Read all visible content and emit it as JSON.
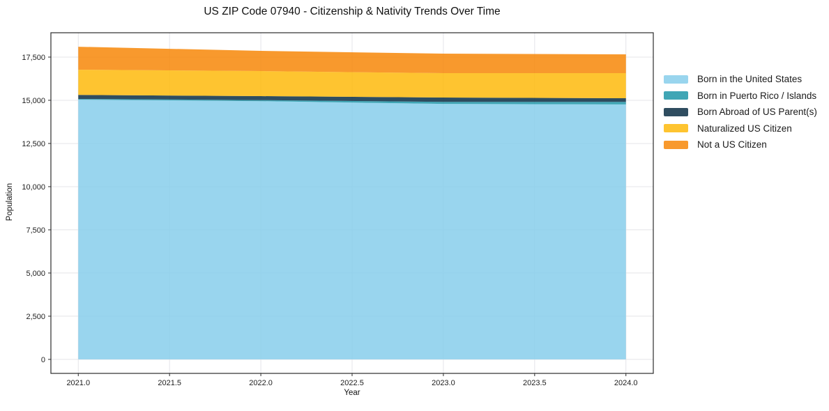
{
  "figure": {
    "title": "US ZIP Code 07940 - Citizenship & Nativity Trends Over Time"
  },
  "chart_data": {
    "type": "area",
    "stacked": true,
    "title": "US ZIP Code 07940 - Citizenship & Nativity Trends Over Time",
    "xlabel": "Year",
    "ylabel": "Population",
    "grid": true,
    "legend_position": "outside-right",
    "fill_alpha": 0.85,
    "x": [
      2021,
      2022,
      2023,
      2024
    ],
    "series": [
      {
        "name": "Born in the United States",
        "color": "#87CEEB",
        "values": [
          15040,
          14950,
          14790,
          14760
        ]
      },
      {
        "name": "Born in Puerto Rico / Islands",
        "color": "#1f96a8",
        "values": [
          40,
          60,
          120,
          150
        ]
      },
      {
        "name": "Born Abroad of US Parent(s)",
        "color": "#0b2e44",
        "values": [
          230,
          230,
          250,
          210
        ]
      },
      {
        "name": "Naturalized US Citizen",
        "color": "#feba0c",
        "values": [
          1460,
          1450,
          1410,
          1450
        ]
      },
      {
        "name": "Not a US Citizen",
        "color": "#f78708",
        "values": [
          1330,
          1170,
          1130,
          1090
        ]
      }
    ],
    "totals": [
      18100,
      17860,
      17700,
      17660
    ],
    "x_tick_values": [
      2021.0,
      2021.5,
      2022.0,
      2022.5,
      2023.0,
      2023.5,
      2024.0
    ],
    "x_tick_labels": [
      "2021.0",
      "2021.5",
      "2022.0",
      "2022.5",
      "2023.0",
      "2023.5",
      "2024.0"
    ],
    "y_tick_values": [
      0,
      2500,
      5000,
      7500,
      10000,
      12500,
      15000,
      17500
    ],
    "y_tick_labels": [
      "0",
      "2,500",
      "5,000",
      "7,500",
      "10,000",
      "12,500",
      "15,000",
      "17,500"
    ],
    "xlim": [
      2020.85,
      2024.15
    ],
    "ylim": [
      -810,
      18910
    ],
    "colors": {
      "grid": "#e4e4e8",
      "spine": "#2b2b2b",
      "tick": "#2b2b2b"
    }
  }
}
